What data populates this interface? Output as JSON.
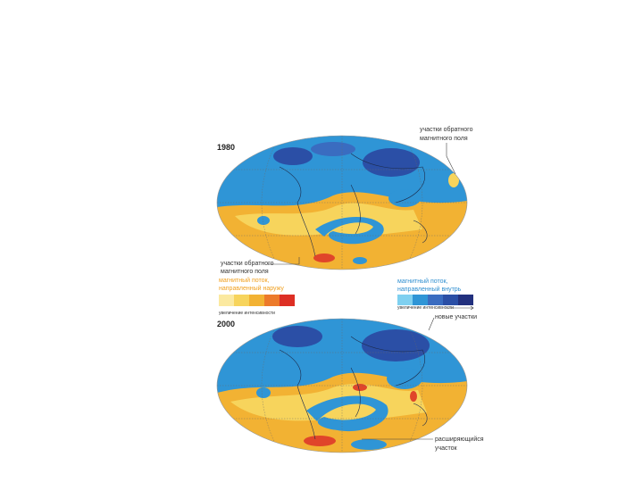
{
  "panels": [
    {
      "year": "1980",
      "annotations": [
        {
          "lines": [
            "участки обратного",
            "магнитного поля"
          ]
        },
        {
          "lines": [
            "участки обратного",
            "магнитного поля"
          ]
        }
      ]
    },
    {
      "year": "2000",
      "annotations": [
        {
          "lines": [
            "новые участки"
          ]
        },
        {
          "lines": [
            "расширяющийся",
            "участок"
          ]
        }
      ]
    }
  ],
  "legend": {
    "outward": {
      "lines": [
        "магнитный поток,",
        "направленный наружу"
      ],
      "scale": "увеличение интенсивности"
    },
    "inward": {
      "lines": [
        "магнитный поток,",
        "направленный внутрь"
      ],
      "scale": "увеличение интенсивности"
    }
  }
}
